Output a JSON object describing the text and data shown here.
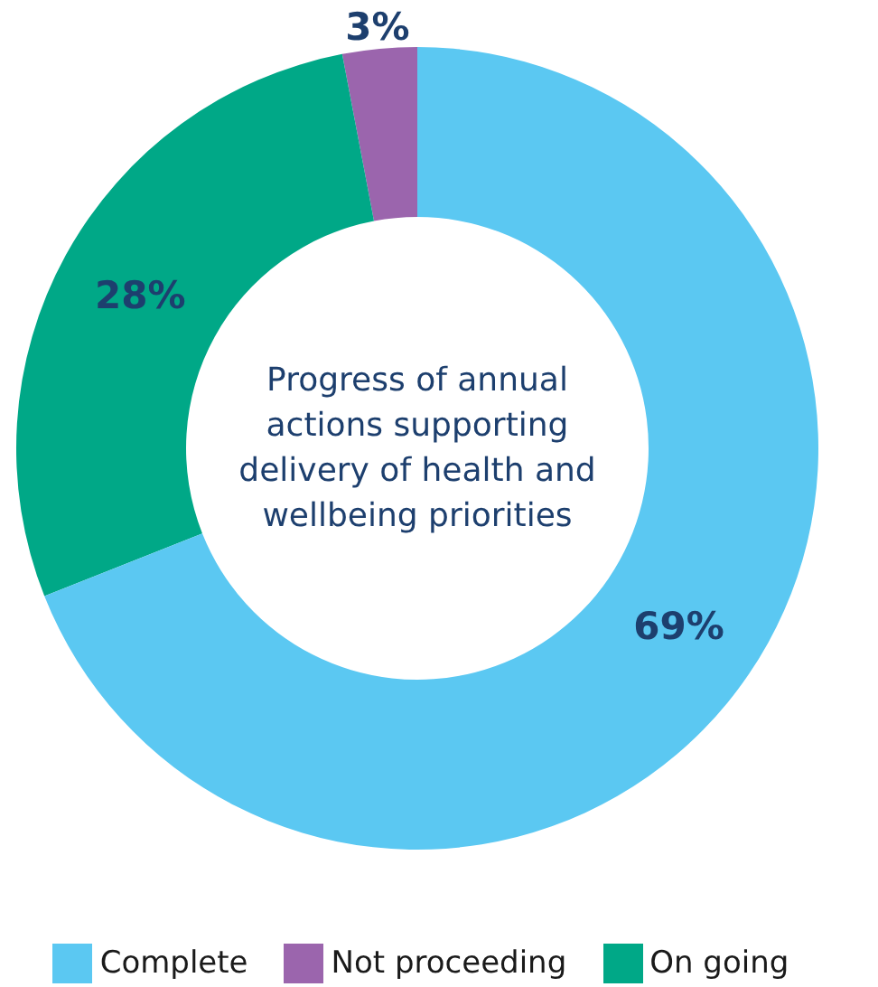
{
  "chart_data": {
    "type": "donut",
    "title": "Progress of annual actions supporting delivery of health and wellbeing priorities",
    "categories": [
      "Not proceeding",
      "On going",
      "Complete"
    ],
    "values": [
      3,
      28,
      69
    ],
    "value_labels": [
      "3%",
      "28%",
      "69%"
    ],
    "colors": [
      "#9b65ad",
      "#00a887",
      "#5bc8f2"
    ],
    "legend": "bottom"
  }
}
